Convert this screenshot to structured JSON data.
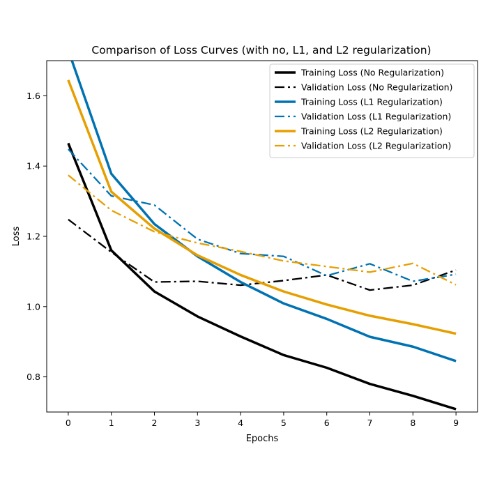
{
  "chart_data": {
    "type": "line",
    "title": "Comparison of Loss Curves (with no, L1, and L2 regularization)",
    "xlabel": "Epochs",
    "ylabel": "Loss",
    "xlim": [
      -0.5,
      9.5
    ],
    "ylim": [
      0.7,
      1.7
    ],
    "x": [
      0,
      1,
      2,
      3,
      4,
      5,
      6,
      7,
      8,
      9
    ],
    "xticks": [
      "0",
      "1",
      "2",
      "3",
      "4",
      "5",
      "6",
      "7",
      "8",
      "9"
    ],
    "yticks": [
      {
        "value": 0.8,
        "label": "0.8"
      },
      {
        "value": 1.0,
        "label": "1.0"
      },
      {
        "value": 1.2,
        "label": "1.2"
      },
      {
        "value": 1.4,
        "label": "1.4"
      },
      {
        "value": 1.6,
        "label": "1.6"
      }
    ],
    "grid": false,
    "legend_position": "top-right",
    "series": [
      {
        "name": "Training Loss (No Regularization)",
        "color": "#000000",
        "style": "solid",
        "width": 3.5,
        "values": [
          1.465,
          1.16,
          1.043,
          0.972,
          0.915,
          0.862,
          0.826,
          0.78,
          0.746,
          0.708
        ]
      },
      {
        "name": "Validation Loss (No Regularization)",
        "color": "#000000",
        "style": "dashdot",
        "width": 2.3,
        "values": [
          1.248,
          1.155,
          1.07,
          1.072,
          1.061,
          1.074,
          1.09,
          1.047,
          1.061,
          1.104
        ]
      },
      {
        "name": "Training Loss (L1 Regularization)",
        "color": "#0072B2",
        "style": "solid",
        "width": 3.5,
        "values": [
          1.73,
          1.378,
          1.235,
          1.143,
          1.07,
          1.009,
          0.965,
          0.914,
          0.886,
          0.845
        ]
      },
      {
        "name": "Validation Loss (L1 Regularization)",
        "color": "#0072B2",
        "style": "dashdot",
        "width": 2.3,
        "values": [
          1.448,
          1.315,
          1.289,
          1.192,
          1.151,
          1.143,
          1.088,
          1.122,
          1.072,
          1.092
        ]
      },
      {
        "name": "Training Loss (L2 Regularization)",
        "color": "#E69F00",
        "style": "solid",
        "width": 3.5,
        "values": [
          1.645,
          1.327,
          1.222,
          1.146,
          1.09,
          1.043,
          1.006,
          0.974,
          0.95,
          0.923
        ]
      },
      {
        "name": "Validation Loss (L2 Regularization)",
        "color": "#E69F00",
        "style": "dashdot",
        "width": 2.3,
        "values": [
          1.374,
          1.274,
          1.213,
          1.181,
          1.157,
          1.13,
          1.114,
          1.098,
          1.123,
          1.062
        ]
      }
    ]
  }
}
